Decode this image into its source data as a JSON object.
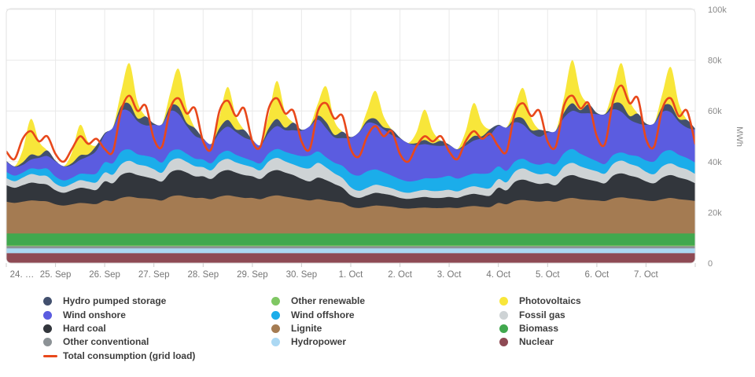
{
  "chart_data": {
    "type": "area",
    "stacked": true,
    "title": "",
    "xlabel": "",
    "ylabel": "MWh",
    "ylim": [
      0,
      100000
    ],
    "grid": true,
    "legend_position": "bottom",
    "value_unit": "thousand MWh (axis shows k)",
    "points_per_day": 6,
    "y_tick_values": [
      0,
      20,
      40,
      60,
      80,
      100
    ],
    "y_tick_labels": [
      "0",
      "20k",
      "40k",
      "60k",
      "80k",
      "100k"
    ],
    "x_labels": [
      "24. …",
      "25. Sep",
      "26. Sep",
      "27. Sep",
      "28. Sep",
      "29. Sep",
      "30. Sep",
      "1. Oct",
      "2. Oct",
      "3. Oct",
      "4. Oct",
      "5. Oct",
      "6. Oct",
      "7. Oct"
    ],
    "series": [
      {
        "name": "Nuclear",
        "type": "area",
        "color": "#8e4a54",
        "values": [
          3.9,
          3.9,
          3.9,
          3.9,
          3.9,
          3.9,
          3.9,
          3.9,
          3.9,
          3.9,
          3.9,
          3.9,
          3.9,
          3.9,
          3.9,
          3.9,
          3.9,
          3.9,
          3.9,
          3.9,
          3.9,
          3.9,
          3.9,
          3.9,
          3.9,
          3.9,
          3.9,
          3.9,
          3.9,
          3.9,
          3.9,
          3.9,
          3.9,
          3.9,
          3.9,
          3.9,
          3.9,
          3.9,
          3.9,
          3.9,
          3.9,
          3.9,
          3.9,
          3.9,
          3.9,
          3.9,
          3.9,
          3.9,
          3.9,
          3.9,
          3.9,
          3.9,
          3.9,
          3.9,
          3.9,
          3.9,
          3.9,
          3.9,
          3.9,
          3.9,
          3.9,
          3.9,
          3.9,
          3.9,
          3.9,
          3.9,
          3.9,
          3.9,
          3.9,
          3.9,
          3.9,
          3.9,
          3.9,
          3.9,
          3.9,
          3.9,
          3.9,
          3.9,
          3.9,
          3.9,
          3.9,
          3.9,
          3.9,
          3.9,
          3.9
        ]
      },
      {
        "name": "Hydropower",
        "type": "area",
        "color": "#abd8f3",
        "values": [
          1.9,
          1.9,
          1.9,
          1.9,
          1.9,
          1.9,
          1.9,
          1.9,
          1.9,
          1.9,
          1.9,
          1.9,
          1.9,
          1.9,
          1.9,
          1.9,
          1.9,
          1.9,
          1.9,
          1.9,
          1.9,
          1.9,
          1.9,
          1.9,
          1.9,
          1.9,
          1.9,
          1.9,
          1.9,
          1.9,
          1.9,
          1.9,
          1.9,
          1.9,
          1.9,
          1.9,
          1.9,
          1.9,
          1.9,
          1.9,
          1.9,
          1.9,
          1.9,
          1.9,
          1.9,
          1.9,
          1.9,
          1.9,
          1.9,
          1.9,
          1.9,
          1.9,
          1.9,
          1.9,
          1.9,
          1.9,
          1.9,
          1.9,
          1.9,
          1.9,
          1.9,
          1.9,
          1.9,
          1.9,
          1.9,
          1.9,
          1.9,
          1.9,
          1.9,
          1.9,
          1.9,
          1.9,
          1.9,
          1.9,
          1.9,
          1.9,
          1.9,
          1.9,
          1.9,
          1.9,
          1.9,
          1.9,
          1.9,
          1.9,
          1.9
        ]
      },
      {
        "name": "Other conventional",
        "type": "area",
        "color": "#8c9296",
        "values": [
          0.9,
          0.9,
          0.9,
          0.9,
          0.9,
          0.9,
          0.9,
          0.9,
          0.9,
          0.9,
          0.9,
          0.9,
          0.9,
          0.9,
          0.9,
          0.9,
          0.9,
          0.9,
          0.9,
          0.9,
          0.9,
          0.9,
          0.9,
          0.9,
          0.9,
          0.9,
          0.9,
          0.9,
          0.9,
          0.9,
          0.9,
          0.9,
          0.9,
          0.9,
          0.9,
          0.9,
          0.9,
          0.9,
          0.9,
          0.9,
          0.9,
          0.9,
          0.9,
          0.9,
          0.9,
          0.9,
          0.9,
          0.9,
          0.9,
          0.9,
          0.9,
          0.9,
          0.9,
          0.9,
          0.9,
          0.9,
          0.9,
          0.9,
          0.9,
          0.9,
          0.9,
          0.9,
          0.9,
          0.9,
          0.9,
          0.9,
          0.9,
          0.9,
          0.9,
          0.9,
          0.9,
          0.9,
          0.9,
          0.9,
          0.9,
          0.9,
          0.9,
          0.9,
          0.9,
          0.9,
          0.9,
          0.9,
          0.9,
          0.9,
          0.9
        ]
      },
      {
        "name": "Other renewable",
        "type": "area",
        "color": "#7fc763",
        "values": [
          0.3,
          0.3,
          0.3,
          0.3,
          0.3,
          0.3,
          0.3,
          0.3,
          0.3,
          0.3,
          0.3,
          0.3,
          0.3,
          0.3,
          0.3,
          0.3,
          0.3,
          0.3,
          0.3,
          0.3,
          0.3,
          0.3,
          0.3,
          0.3,
          0.3,
          0.3,
          0.3,
          0.3,
          0.3,
          0.3,
          0.3,
          0.3,
          0.3,
          0.3,
          0.3,
          0.3,
          0.3,
          0.3,
          0.3,
          0.3,
          0.3,
          0.3,
          0.3,
          0.3,
          0.3,
          0.3,
          0.3,
          0.3,
          0.3,
          0.3,
          0.3,
          0.3,
          0.3,
          0.3,
          0.3,
          0.3,
          0.3,
          0.3,
          0.3,
          0.3,
          0.3,
          0.3,
          0.3,
          0.3,
          0.3,
          0.3,
          0.3,
          0.3,
          0.3,
          0.3,
          0.3,
          0.3,
          0.3,
          0.3,
          0.3,
          0.3,
          0.3,
          0.3,
          0.3,
          0.3,
          0.3,
          0.3,
          0.3,
          0.3,
          0.3
        ]
      },
      {
        "name": "Biomass",
        "type": "area",
        "color": "#41a84e",
        "values": [
          4.7,
          4.7,
          4.7,
          4.7,
          4.7,
          4.7,
          4.7,
          4.7,
          4.7,
          4.7,
          4.7,
          4.7,
          4.7,
          4.7,
          4.7,
          4.7,
          4.7,
          4.7,
          4.7,
          4.7,
          4.7,
          4.7,
          4.7,
          4.7,
          4.7,
          4.7,
          4.7,
          4.7,
          4.7,
          4.7,
          4.7,
          4.7,
          4.7,
          4.7,
          4.7,
          4.7,
          4.7,
          4.7,
          4.7,
          4.7,
          4.7,
          4.7,
          4.7,
          4.7,
          4.7,
          4.7,
          4.7,
          4.7,
          4.7,
          4.7,
          4.7,
          4.7,
          4.7,
          4.7,
          4.7,
          4.7,
          4.7,
          4.7,
          4.7,
          4.7,
          4.7,
          4.7,
          4.7,
          4.7,
          4.7,
          4.7,
          4.7,
          4.7,
          4.7,
          4.7,
          4.7,
          4.7,
          4.7,
          4.7,
          4.7,
          4.7,
          4.7,
          4.7,
          4.7,
          4.7,
          4.7,
          4.7,
          4.7,
          4.7,
          4.7
        ]
      },
      {
        "name": "Lignite",
        "type": "area",
        "color": "#a47b52",
        "values": [
          12.5,
          12,
          12.5,
          13,
          12.8,
          12.6,
          11.5,
          11,
          11.5,
          12,
          11.8,
          11.6,
          13,
          12.8,
          14,
          14.5,
          14,
          13.8,
          13.5,
          13,
          14.5,
          15,
          14.5,
          14,
          14,
          13.5,
          14.5,
          15,
          14.5,
          14,
          14,
          13.5,
          14.5,
          15,
          14.5,
          14,
          13.5,
          13,
          13.5,
          13,
          12.5,
          12,
          10.5,
          10,
          10.5,
          11,
          10.8,
          10.5,
          10,
          9.8,
          10,
          10.2,
          10,
          10,
          10.2,
          10,
          10.5,
          10.8,
          10.5,
          10.4,
          12,
          11.5,
          12.8,
          13.2,
          12.8,
          12.5,
          12.8,
          12.5,
          13.5,
          14,
          13.5,
          13.2,
          13,
          12.8,
          13.8,
          14.2,
          13.8,
          13.5,
          13,
          12.8,
          13.5,
          14,
          13.5,
          13.2,
          12.8
        ]
      },
      {
        "name": "Hard coal",
        "type": "area",
        "color": "#32363c",
        "values": [
          6.5,
          6,
          6.5,
          7,
          6.8,
          6.6,
          5.5,
          5,
          5.5,
          6,
          5.8,
          5.6,
          7.5,
          7,
          9,
          9.5,
          9,
          8.5,
          8,
          7.5,
          9.5,
          10,
          9.5,
          8.5,
          8.5,
          8,
          9.5,
          10,
          9.5,
          9,
          8.5,
          8,
          9.5,
          10,
          9.5,
          9,
          8,
          7.5,
          8.5,
          8,
          7,
          6,
          4.5,
          4,
          4.5,
          5,
          4.8,
          4.5,
          4,
          3.8,
          4,
          4.2,
          4,
          4,
          4.2,
          4,
          4.5,
          4.8,
          4.6,
          4.5,
          6,
          5.5,
          7.5,
          8,
          7.5,
          7,
          7,
          6.5,
          8.5,
          9,
          8.5,
          8,
          7.5,
          7,
          9,
          9.5,
          9,
          8.5,
          7.5,
          7,
          8.5,
          9,
          8.5,
          8,
          7
        ]
      },
      {
        "name": "Fossil gas",
        "type": "area",
        "color": "#ced3d5",
        "values": [
          2.8,
          2.6,
          3,
          3.4,
          3.2,
          3.3,
          2.6,
          2.4,
          2.6,
          3,
          2.8,
          3,
          3.5,
          3.4,
          4.2,
          4.6,
          4.2,
          4.3,
          3.8,
          3.5,
          4.4,
          4.6,
          4.2,
          4,
          3.6,
          3.4,
          4.2,
          4.4,
          4,
          4,
          3.6,
          3.4,
          4.4,
          4.8,
          4.4,
          4.2,
          4.5,
          5.2,
          5.8,
          5,
          4.2,
          3.8,
          3.2,
          2.8,
          3,
          3.2,
          3,
          2.8,
          2.6,
          2.4,
          2.6,
          2.8,
          2.7,
          2.8,
          2.8,
          2.6,
          2.8,
          3,
          2.9,
          3,
          3.4,
          3.2,
          4,
          4.4,
          4,
          3.8,
          3.8,
          3.6,
          4.4,
          4.8,
          4.4,
          4.2,
          4,
          3.8,
          4.6,
          5,
          4.6,
          4.4,
          3.8,
          3.6,
          4.4,
          4.6,
          4.2,
          4,
          3.6
        ]
      },
      {
        "name": "Wind offshore",
        "type": "area",
        "color": "#1badea",
        "values": [
          2.5,
          2.2,
          2,
          2.2,
          2.5,
          3,
          2.8,
          2.5,
          2.3,
          2.5,
          3,
          3.5,
          4,
          4.5,
          5,
          4.5,
          4,
          4,
          4.5,
          4,
          3.8,
          3.5,
          3.2,
          3,
          3,
          2.8,
          3,
          3.2,
          3,
          2.8,
          2.5,
          2.8,
          3.2,
          3.5,
          3.8,
          4,
          4.5,
          5,
          4.5,
          4,
          4.2,
          4.8,
          5.5,
          6,
          6.5,
          6,
          5.5,
          5,
          4.8,
          4.5,
          4.2,
          4.5,
          5,
          5.2,
          5.5,
          5,
          4.8,
          5,
          5.5,
          6,
          5,
          4.5,
          4,
          3.8,
          3.5,
          3.8,
          4.2,
          4.8,
          5.2,
          5.5,
          5,
          4.5,
          4,
          3.8,
          3.5,
          3.2,
          3.5,
          4,
          4.5,
          5,
          5.5,
          5.2,
          4.8,
          4.5,
          4.5
        ]
      },
      {
        "name": "Wind onshore",
        "type": "area",
        "color": "#5b5ce0",
        "values": [
          4,
          3.5,
          3,
          3.5,
          4.5,
          5,
          6,
          5.5,
          5,
          5.5,
          7,
          9,
          11,
          14,
          16,
          15,
          13,
          12,
          13,
          15,
          16,
          14,
          11,
          9,
          8,
          7.5,
          8.5,
          9.5,
          9,
          8,
          8,
          7,
          8,
          9,
          8.5,
          9.5,
          10,
          11.5,
          12.5,
          11.5,
          10,
          11,
          14,
          17,
          19,
          18,
          17,
          16,
          16,
          15,
          14,
          13.5,
          13,
          12.5,
          12,
          11.5,
          12,
          13,
          14,
          15,
          16,
          17,
          15.5,
          13.5,
          12,
          11,
          12,
          13,
          14,
          15,
          16,
          17.5,
          18.5,
          19.5,
          18,
          16,
          14,
          13,
          14,
          15,
          16,
          15,
          13,
          12,
          13
        ]
      },
      {
        "name": "Hydro pumped storage",
        "type": "area",
        "color": "#42506e",
        "values": [
          0.3,
          0.1,
          1,
          2,
          0.8,
          2.2,
          0.3,
          0.1,
          0.8,
          1.8,
          0.8,
          2,
          0.5,
          0.1,
          2,
          3,
          1.2,
          3.5,
          0.5,
          0.1,
          2,
          2.8,
          1.2,
          3,
          0.4,
          0.1,
          1.8,
          2.6,
          1,
          3,
          0.4,
          0.1,
          1.8,
          2.8,
          1,
          3,
          0.4,
          0.1,
          1.6,
          2.4,
          1,
          2.5,
          0.3,
          0.1,
          1,
          2,
          0.8,
          2.2,
          0.3,
          0.1,
          0.8,
          1.6,
          0.8,
          2,
          0.3,
          0.1,
          1,
          1.8,
          0.8,
          2.2,
          0.4,
          0.1,
          1.6,
          2.4,
          1,
          2.8,
          0.5,
          0.1,
          2,
          3,
          1.2,
          3.5,
          0.5,
          0.2,
          2.2,
          3.2,
          1.4,
          3.8,
          0.5,
          0.1,
          2,
          2.8,
          1.2,
          3,
          0.4
        ]
      },
      {
        "name": "Photovoltaics",
        "type": "area",
        "color": "#f8e63a",
        "values": [
          0,
          0,
          4.9,
          14,
          5.6,
          0,
          0,
          0,
          4.2,
          12,
          4.8,
          0,
          0,
          0,
          5.6,
          16,
          6.4,
          0,
          0,
          0,
          5.3,
          15,
          6,
          0,
          0,
          0,
          4.6,
          13,
          5.2,
          0,
          0,
          0,
          5.3,
          15,
          6,
          0,
          0,
          0,
          4.9,
          14,
          5.6,
          0,
          0,
          0,
          3.9,
          11,
          4.4,
          0,
          0,
          0,
          4.2,
          12,
          4.8,
          0,
          0,
          0,
          4.6,
          13,
          5.2,
          0,
          0,
          0,
          4.2,
          12,
          4.8,
          0,
          0,
          0,
          6,
          17,
          6.8,
          0,
          0,
          0,
          5.6,
          16,
          6.4,
          0,
          0,
          0,
          5.3,
          15,
          6,
          0,
          0
        ]
      },
      {
        "name": "Total consumption (grid load)",
        "type": "line",
        "color": "#e8481b",
        "values": [
          44,
          41,
          49,
          52,
          48,
          50,
          43,
          40,
          45,
          50,
          47,
          49,
          45,
          44,
          60,
          66,
          60,
          62,
          49,
          46,
          61,
          65,
          59,
          61,
          48,
          45,
          60,
          64,
          58,
          61,
          48,
          46,
          61,
          65,
          59,
          60,
          48,
          45,
          60,
          63,
          57,
          58,
          45,
          42,
          50,
          54,
          50,
          52,
          43,
          40,
          46,
          50,
          48,
          50,
          44,
          41,
          48,
          52,
          49,
          51,
          46,
          44,
          59,
          63,
          58,
          60,
          48,
          46,
          62,
          66,
          61,
          63,
          50,
          47,
          64,
          70,
          63,
          65,
          49,
          46,
          61,
          65,
          58,
          60,
          47
        ]
      }
    ]
  },
  "legend": {
    "columns": [
      [
        "Hydro pumped storage",
        "Wind onshore",
        "Hard coal",
        "Other conventional",
        "Total consumption (grid load)"
      ],
      [
        "Other renewable",
        "Wind offshore",
        "Lignite",
        "Hydropower"
      ],
      [
        "Photovoltaics",
        "Fossil gas",
        "Biomass",
        "Nuclear"
      ]
    ]
  },
  "style_colors": {
    "grid_line": "#e9e9e9",
    "panel_border": "#e2e2e2",
    "tick": "#cccccc",
    "axis_text": "#767676"
  }
}
